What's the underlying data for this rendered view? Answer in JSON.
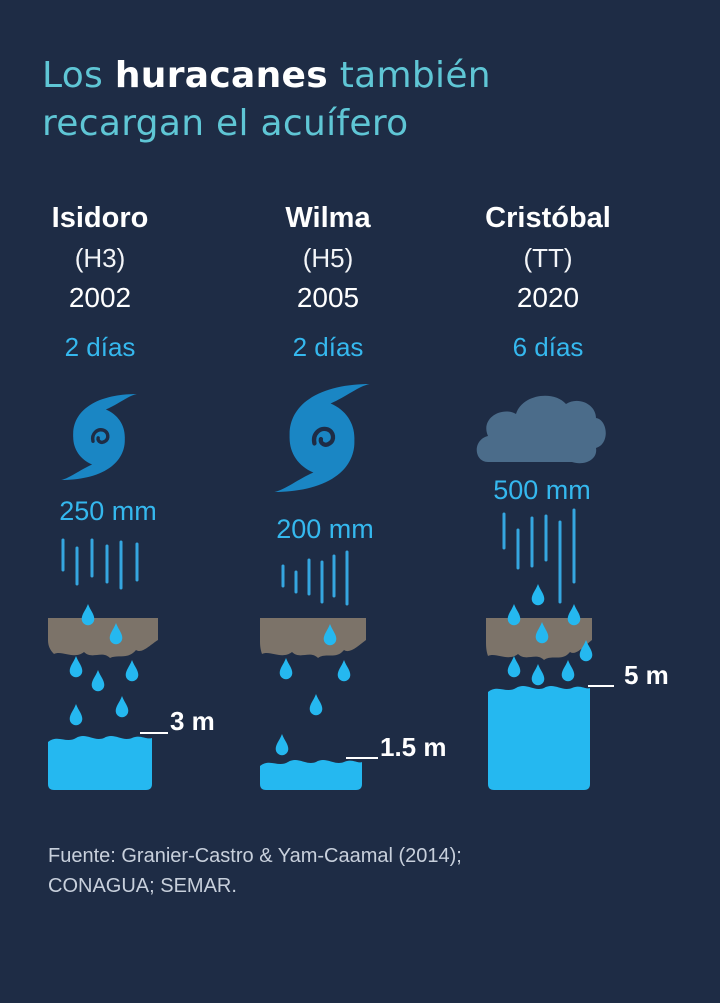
{
  "title": {
    "part1": "Los ",
    "highlight": "huracanes",
    "part2": " también",
    "line2": "recargan el acuífero"
  },
  "storms": [
    {
      "name": "Isidoro",
      "category": "(H3)",
      "year": "2002",
      "duration": "2 días",
      "rainfall": "250 mm",
      "recharge": "3 m",
      "icon": "hurricane-icon"
    },
    {
      "name": "Wilma",
      "category": "(H5)",
      "year": "2005",
      "duration": "2 días",
      "rainfall": "200 mm",
      "recharge": "1.5 m",
      "icon": "hurricane-icon"
    },
    {
      "name": "Cristóbal",
      "category": "(TT)",
      "year": "2020",
      "duration": "6 días",
      "rainfall": "500 mm",
      "recharge": "5 m",
      "icon": "cloud-icon"
    }
  ],
  "source": {
    "line1": "Fuente: Granier-Castro & Yam-Caamal (2014);",
    "line2": "CONAGUA; SEMAR."
  },
  "colors": {
    "background": "#1e2c45",
    "title_accent": "#5fc6d5",
    "water": "#25b8f0",
    "rain": "#35a6e0",
    "soil": "#7c7369",
    "hurricane": "#1a86c4",
    "cloud": "#4b6c8a"
  }
}
